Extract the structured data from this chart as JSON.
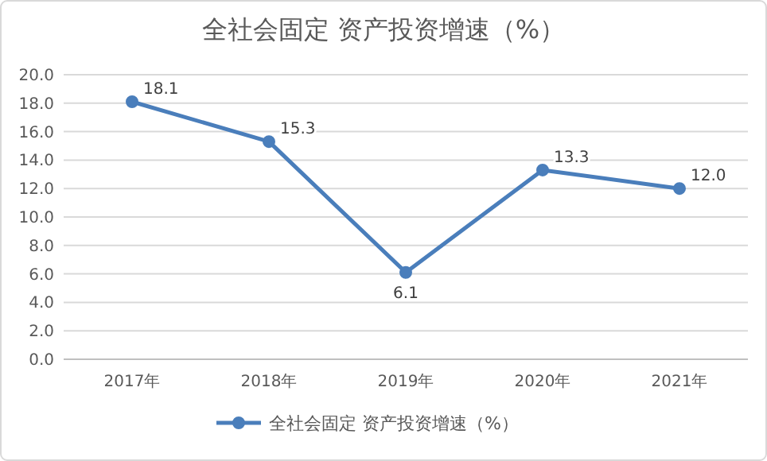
{
  "chart_data": {
    "type": "line",
    "title": "全社会固定 资产投资增速（%）",
    "categories": [
      "2017年",
      "2018年",
      "2019年",
      "2020年",
      "2021年"
    ],
    "series": [
      {
        "name": "全社会固定 资产投资增速（%）",
        "color": "#4a7ebb",
        "values": [
          18.1,
          15.3,
          6.1,
          13.3,
          12.0
        ],
        "value_labels": [
          "18.1",
          "15.3",
          "6.1",
          "13.3",
          "12.0"
        ]
      }
    ],
    "ylim": [
      0,
      20
    ],
    "yticks": [
      {
        "value": 0,
        "label": "0.0"
      },
      {
        "value": 2,
        "label": "2.0"
      },
      {
        "value": 4,
        "label": "4.0"
      },
      {
        "value": 6,
        "label": "6.0"
      },
      {
        "value": 8,
        "label": "8.0"
      },
      {
        "value": 10,
        "label": "10.0"
      },
      {
        "value": 12,
        "label": "12.0"
      },
      {
        "value": 14,
        "label": "14.0"
      },
      {
        "value": 16,
        "label": "16.0"
      },
      {
        "value": 18,
        "label": "18.0"
      },
      {
        "value": 20,
        "label": "20.0"
      }
    ],
    "grid": "y",
    "legend": "bottom",
    "marker": "circle",
    "line_style": "solid"
  }
}
